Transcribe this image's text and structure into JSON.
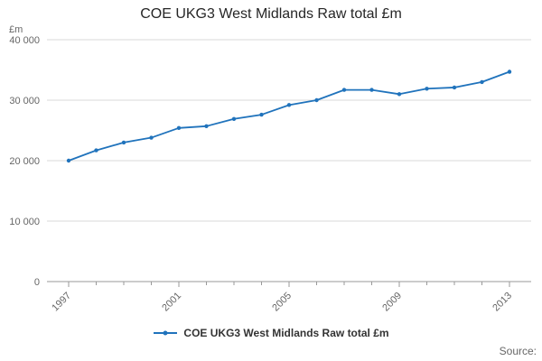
{
  "page": {
    "source_label": "Source:"
  },
  "chart_data": {
    "type": "line",
    "title": "COE UKG3 West Midlands Raw total £m",
    "xlabel": "",
    "ylabel": "£m",
    "x": [
      1997,
      1998,
      1999,
      2000,
      2001,
      2002,
      2003,
      2004,
      2005,
      2006,
      2007,
      2008,
      2009,
      2010,
      2011,
      2012,
      2013
    ],
    "series": [
      {
        "name": "COE UKG3 West Midlands Raw total £m",
        "values": [
          20000,
          21700,
          23000,
          23800,
          25400,
          25700,
          26900,
          27600,
          29200,
          30000,
          31700,
          31700,
          31000,
          31900,
          32100,
          33000,
          34700
        ]
      }
    ],
    "ylim": [
      0,
      40000
    ],
    "yticks": [
      0,
      10000,
      20000,
      30000,
      40000
    ],
    "ytick_labels": [
      "0",
      "10 000",
      "20 000",
      "30 000",
      "40 000"
    ],
    "xtick_values": [
      1997,
      2001,
      2005,
      2009,
      2013
    ],
    "xtick_labels": [
      "1997",
      "2001",
      "2005",
      "2009",
      "2013"
    ],
    "grid": true,
    "legend_position": "bottom",
    "line_color": "#2073bc",
    "grid_color": "#d9d9d9",
    "axis_color": "#999999",
    "tick_label_color": "#666666"
  }
}
